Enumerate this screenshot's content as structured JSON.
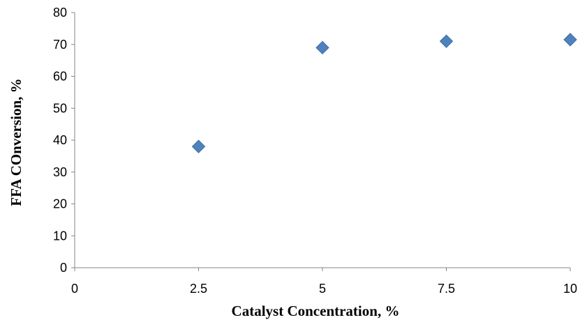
{
  "chart_data": {
    "type": "scatter",
    "title": "",
    "xlabel": "Catalyst Concentration, %",
    "ylabel": "FFA COnversion, %",
    "xlim": [
      0,
      10
    ],
    "ylim": [
      0,
      80
    ],
    "x_ticks": [
      "0",
      "2.5",
      "5",
      "7.5",
      "10"
    ],
    "y_ticks": [
      "0",
      "10",
      "20",
      "30",
      "40",
      "50",
      "60",
      "70",
      "80"
    ],
    "grid": false,
    "legend": "none",
    "marker": "diamond",
    "marker_color": "#4f81bd",
    "series": [
      {
        "x": [
          2.5,
          5,
          7.5,
          10
        ],
        "y": [
          38,
          69,
          71,
          71.5
        ]
      }
    ]
  }
}
